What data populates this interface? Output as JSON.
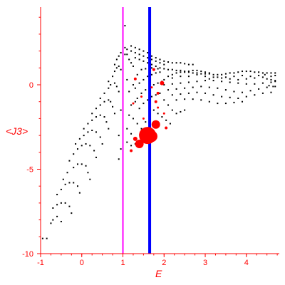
{
  "chart_data": {
    "type": "scatter",
    "title": "",
    "xlabel": "E",
    "ylabel": "<J3>",
    "xlim": [
      -1,
      4.8
    ],
    "ylim": [
      -10,
      4.6
    ],
    "x_ticks": [
      "-1",
      "0",
      "1",
      "2",
      "3",
      "4"
    ],
    "y_ticks": [
      "-10",
      "-5",
      "0"
    ],
    "x_tick_values": [
      -1,
      0,
      1,
      2,
      3,
      4
    ],
    "y_tick_values": [
      -10,
      -5,
      0
    ],
    "grid": false,
    "colors": {
      "axis": "#ff0000",
      "points": "#000000",
      "highlight": "#ff0000",
      "line_magenta": "#ff00ff",
      "line_blue": "#0000ff"
    },
    "vertical_lines": [
      {
        "x": 1.0,
        "color": "#ff00ff"
      },
      {
        "x": 1.65,
        "color": "#0000ff"
      }
    ],
    "black_points": [
      [
        -0.95,
        -9.1
      ],
      [
        -0.85,
        -9.1
      ],
      [
        -0.75,
        -8.2
      ],
      [
        -0.7,
        -8.0
      ],
      [
        -0.6,
        -7.8
      ],
      [
        -0.5,
        -8.1
      ],
      [
        -0.7,
        -7.3
      ],
      [
        -0.6,
        -7.1
      ],
      [
        -0.5,
        -7.0
      ],
      [
        -0.4,
        -7.0
      ],
      [
        -0.3,
        -7.2
      ],
      [
        -0.25,
        -7.6
      ],
      [
        -0.6,
        -6.5
      ],
      [
        -0.5,
        -6.2
      ],
      [
        -0.4,
        -5.9
      ],
      [
        -0.3,
        -5.8
      ],
      [
        -0.2,
        -5.8
      ],
      [
        -0.1,
        -6.0
      ],
      [
        -0.05,
        -6.4
      ],
      [
        -0.45,
        -5.6
      ],
      [
        -0.35,
        -5.2
      ],
      [
        -0.2,
        -4.9
      ],
      [
        -0.1,
        -4.7
      ],
      [
        0.0,
        -4.7
      ],
      [
        0.1,
        -4.8
      ],
      [
        0.15,
        -5.2
      ],
      [
        0.2,
        -5.6
      ],
      [
        -0.3,
        -4.5
      ],
      [
        -0.2,
        -4.1
      ],
      [
        -0.1,
        -3.8
      ],
      [
        0.0,
        -3.6
      ],
      [
        0.1,
        -3.5
      ],
      [
        0.2,
        -3.6
      ],
      [
        0.3,
        -3.9
      ],
      [
        0.35,
        -4.3
      ],
      [
        -0.15,
        -3.5
      ],
      [
        -0.05,
        -3.2
      ],
      [
        0.05,
        -3.0
      ],
      [
        0.15,
        -2.8
      ],
      [
        0.25,
        -2.7
      ],
      [
        0.35,
        -2.8
      ],
      [
        0.45,
        -3.1
      ],
      [
        0.5,
        -3.5
      ],
      [
        0.05,
        -2.6
      ],
      [
        0.15,
        -2.3
      ],
      [
        0.25,
        -2.1
      ],
      [
        0.35,
        -1.9
      ],
      [
        0.45,
        -1.8
      ],
      [
        0.55,
        -1.9
      ],
      [
        0.6,
        -2.2
      ],
      [
        0.65,
        -2.6
      ],
      [
        0.25,
        -1.7
      ],
      [
        0.35,
        -1.4
      ],
      [
        0.45,
        -1.2
      ],
      [
        0.55,
        -1.0
      ],
      [
        0.65,
        -0.9
      ],
      [
        0.7,
        -1.0
      ],
      [
        0.75,
        -1.3
      ],
      [
        0.8,
        -1.7
      ],
      [
        0.45,
        -0.8
      ],
      [
        0.55,
        -0.5
      ],
      [
        0.65,
        -0.2
      ],
      [
        0.7,
        0.0
      ],
      [
        0.8,
        0.1
      ],
      [
        0.85,
        -0.1
      ],
      [
        0.9,
        -0.4
      ],
      [
        0.65,
        0.2
      ],
      [
        0.75,
        0.5
      ],
      [
        0.8,
        0.8
      ],
      [
        0.85,
        1.0
      ],
      [
        0.9,
        1.1
      ],
      [
        0.95,
        0.9
      ],
      [
        0.8,
        1.2
      ],
      [
        0.85,
        1.5
      ],
      [
        0.9,
        1.7
      ],
      [
        0.95,
        1.9
      ],
      [
        1.0,
        2.0
      ],
      [
        1.05,
        1.8
      ],
      [
        0.9,
        -3.0
      ],
      [
        0.95,
        -3.8
      ],
      [
        0.9,
        -4.4
      ],
      [
        1.0,
        -2.5
      ],
      [
        0.95,
        -1.5
      ],
      [
        1.0,
        2.6
      ],
      [
        1.05,
        3.5
      ],
      [
        1.05,
        2.2
      ],
      [
        1.1,
        1.8
      ],
      [
        1.15,
        1.5
      ],
      [
        1.2,
        1.3
      ],
      [
        1.25,
        1.1
      ],
      [
        1.1,
        2.1
      ],
      [
        1.2,
        2.0
      ],
      [
        1.3,
        1.9
      ],
      [
        1.4,
        1.8
      ],
      [
        1.5,
        1.7
      ],
      [
        1.6,
        1.6
      ],
      [
        1.7,
        1.5
      ],
      [
        1.8,
        1.4
      ],
      [
        1.9,
        1.3
      ],
      [
        2.0,
        1.2
      ],
      [
        1.2,
        2.3
      ],
      [
        1.3,
        2.2
      ],
      [
        1.4,
        2.1
      ],
      [
        1.5,
        2.0
      ],
      [
        1.6,
        1.9
      ],
      [
        1.7,
        1.7
      ],
      [
        1.8,
        1.6
      ],
      [
        1.9,
        1.5
      ],
      [
        2.0,
        1.4
      ],
      [
        2.1,
        1.35
      ],
      [
        2.2,
        1.3
      ],
      [
        2.3,
        1.3
      ],
      [
        2.4,
        1.3
      ],
      [
        2.5,
        1.25
      ],
      [
        2.6,
        1.2
      ],
      [
        2.7,
        1.2
      ],
      [
        1.3,
        1.6
      ],
      [
        1.4,
        1.5
      ],
      [
        1.5,
        1.4
      ],
      [
        1.6,
        1.3
      ],
      [
        1.7,
        1.2
      ],
      [
        1.8,
        1.1
      ],
      [
        1.9,
        1.0
      ],
      [
        2.0,
        0.95
      ],
      [
        2.1,
        0.9
      ],
      [
        2.2,
        0.9
      ],
      [
        2.3,
        0.85
      ],
      [
        2.4,
        0.85
      ],
      [
        2.5,
        0.8
      ],
      [
        2.6,
        0.75
      ],
      [
        2.7,
        0.7
      ],
      [
        2.8,
        0.7
      ],
      [
        2.9,
        0.65
      ],
      [
        3.0,
        0.65
      ],
      [
        3.1,
        0.65
      ],
      [
        3.2,
        0.6
      ],
      [
        3.3,
        0.6
      ],
      [
        3.4,
        0.6
      ],
      [
        3.5,
        0.65
      ],
      [
        3.6,
        0.7
      ],
      [
        3.7,
        0.7
      ],
      [
        3.8,
        0.75
      ],
      [
        3.9,
        0.8
      ],
      [
        4.0,
        0.8
      ],
      [
        4.1,
        0.8
      ],
      [
        4.2,
        0.75
      ],
      [
        4.3,
        0.75
      ],
      [
        4.4,
        0.7
      ],
      [
        4.5,
        0.7
      ],
      [
        4.6,
        0.7
      ],
      [
        4.7,
        0.7
      ],
      [
        2.1,
        0.5
      ],
      [
        2.2,
        0.6
      ],
      [
        2.3,
        0.7
      ],
      [
        2.4,
        0.75
      ],
      [
        2.5,
        0.75
      ],
      [
        2.6,
        0.8
      ],
      [
        2.7,
        0.85
      ],
      [
        2.8,
        0.85
      ],
      [
        2.9,
        0.8
      ],
      [
        3.0,
        0.75
      ],
      [
        3.1,
        0.7
      ],
      [
        2.0,
        0.3
      ],
      [
        2.2,
        0.4
      ],
      [
        2.4,
        0.5
      ],
      [
        2.6,
        0.5
      ],
      [
        2.8,
        0.6
      ],
      [
        3.0,
        0.5
      ],
      [
        3.2,
        0.45
      ],
      [
        3.4,
        0.4
      ],
      [
        3.6,
        0.35
      ],
      [
        3.8,
        0.3
      ],
      [
        4.0,
        0.35
      ],
      [
        4.2,
        0.4
      ],
      [
        4.4,
        0.45
      ],
      [
        4.6,
        0.5
      ],
      [
        4.7,
        0.55
      ],
      [
        2.0,
        0.0
      ],
      [
        2.2,
        0.05
      ],
      [
        2.4,
        0.1
      ],
      [
        2.6,
        0.15
      ],
      [
        2.8,
        0.2
      ],
      [
        3.0,
        0.25
      ],
      [
        3.2,
        0.25
      ],
      [
        3.4,
        0.2
      ],
      [
        3.6,
        0.15
      ],
      [
        3.8,
        0.1
      ],
      [
        4.0,
        0.05
      ],
      [
        4.2,
        0.05
      ],
      [
        4.4,
        0.1
      ],
      [
        4.6,
        0.15
      ],
      [
        4.7,
        0.2
      ],
      [
        2.1,
        -0.3
      ],
      [
        2.3,
        -0.25
      ],
      [
        2.5,
        -0.2
      ],
      [
        2.7,
        -0.15
      ],
      [
        2.9,
        -0.1
      ],
      [
        3.1,
        -0.15
      ],
      [
        3.3,
        -0.2
      ],
      [
        3.5,
        -0.3
      ],
      [
        3.7,
        -0.4
      ],
      [
        3.9,
        -0.45
      ],
      [
        4.1,
        -0.35
      ],
      [
        4.3,
        -0.25
      ],
      [
        4.5,
        -0.15
      ],
      [
        4.7,
        -0.1
      ],
      [
        2.2,
        -0.6
      ],
      [
        2.4,
        -0.55
      ],
      [
        2.6,
        -0.5
      ],
      [
        2.8,
        -0.45
      ],
      [
        3.0,
        -0.5
      ],
      [
        3.2,
        -0.6
      ],
      [
        3.4,
        -0.7
      ],
      [
        3.6,
        -0.75
      ],
      [
        3.8,
        -0.8
      ],
      [
        4.0,
        -0.7
      ],
      [
        4.2,
        -0.6
      ],
      [
        4.4,
        -0.5
      ],
      [
        4.6,
        -0.45
      ],
      [
        2.3,
        -0.9
      ],
      [
        2.5,
        -0.85
      ],
      [
        2.7,
        -0.85
      ],
      [
        2.9,
        -0.9
      ],
      [
        3.1,
        -1.0
      ],
      [
        3.3,
        -1.1
      ],
      [
        3.5,
        -1.1
      ],
      [
        3.7,
        -1.05
      ],
      [
        3.9,
        -1.0
      ],
      [
        1.3,
        -0.2
      ],
      [
        1.4,
        0.1
      ],
      [
        1.5,
        0.3
      ],
      [
        1.6,
        0.5
      ],
      [
        1.7,
        0.6
      ],
      [
        1.8,
        0.7
      ],
      [
        1.9,
        0.75
      ],
      [
        1.35,
        -0.8
      ],
      [
        1.45,
        -0.5
      ],
      [
        1.55,
        -0.3
      ],
      [
        1.65,
        -0.1
      ],
      [
        1.75,
        0.0
      ],
      [
        1.85,
        0.1
      ],
      [
        1.95,
        0.2
      ],
      [
        1.2,
        -1.2
      ],
      [
        1.3,
        -1.0
      ],
      [
        1.4,
        -1.4
      ],
      [
        1.5,
        -1.1
      ],
      [
        1.6,
        -0.9
      ],
      [
        1.7,
        -0.7
      ],
      [
        1.8,
        -0.6
      ],
      [
        1.9,
        -0.5
      ],
      [
        2.0,
        -0.9
      ],
      [
        2.1,
        -1.2
      ],
      [
        2.2,
        -1.5
      ],
      [
        2.3,
        -1.7
      ],
      [
        2.4,
        -1.6
      ],
      [
        2.5,
        -1.5
      ],
      [
        1.15,
        -1.8
      ],
      [
        1.25,
        -2.0
      ],
      [
        1.35,
        -2.3
      ],
      [
        1.45,
        -2.6
      ],
      [
        1.55,
        -2.2
      ],
      [
        1.65,
        -1.8
      ],
      [
        1.75,
        -1.5
      ],
      [
        1.85,
        -1.7
      ],
      [
        1.95,
        -1.9
      ],
      [
        2.05,
        -2.1
      ],
      [
        2.15,
        -2.3
      ],
      [
        1.1,
        -2.6
      ],
      [
        1.2,
        -2.9
      ],
      [
        1.3,
        -3.2
      ],
      [
        1.1,
        -3.4
      ],
      [
        1.2,
        -3.6
      ],
      [
        1.3,
        -3.5
      ],
      [
        1.1,
        0.3
      ],
      [
        1.15,
        -0.4
      ],
      [
        1.25,
        0.0
      ],
      [
        1.35,
        0.6
      ],
      [
        1.45,
        0.9
      ],
      [
        1.55,
        0.95
      ],
      [
        1.7,
        1.0
      ],
      [
        1.85,
        0.95
      ],
      [
        4.5,
        0.35
      ],
      [
        4.6,
        0.3
      ],
      [
        4.7,
        0.25
      ],
      [
        4.55,
        -0.05
      ],
      [
        4.65,
        -0.1
      ],
      [
        4.45,
        0.6
      ],
      [
        4.3,
        0.55
      ],
      [
        4.1,
        0.5
      ],
      [
        3.9,
        0.55
      ],
      [
        3.7,
        0.5
      ],
      [
        3.5,
        0.45
      ],
      [
        3.3,
        0.45
      ],
      [
        3.1,
        0.35
      ]
    ],
    "red_points": [
      {
        "x": 1.6,
        "y": -3.0,
        "size": 12
      },
      {
        "x": 1.55,
        "y": -2.95,
        "size": 9
      },
      {
        "x": 1.7,
        "y": -3.05,
        "size": 8
      },
      {
        "x": 1.4,
        "y": -3.5,
        "size": 6
      },
      {
        "x": 1.8,
        "y": -2.35,
        "size": 6
      },
      {
        "x": 1.95,
        "y": 0.1,
        "size": 3
      },
      {
        "x": 1.3,
        "y": -3.2,
        "size": 3
      },
      {
        "x": 1.2,
        "y": -3.9,
        "size": 2
      },
      {
        "x": 2.05,
        "y": -2.55,
        "size": 2
      },
      {
        "x": 1.8,
        "y": -1.0,
        "size": 2
      },
      {
        "x": 1.85,
        "y": -0.5,
        "size": 2
      },
      {
        "x": 1.75,
        "y": 0.9,
        "size": 2
      },
      {
        "x": 1.3,
        "y": 0.35,
        "size": 2
      },
      {
        "x": 1.25,
        "y": -1.1,
        "size": 1.5
      },
      {
        "x": 2.0,
        "y": -1.7,
        "size": 1.5
      },
      {
        "x": 1.5,
        "y": -2.0,
        "size": 1.5
      },
      {
        "x": 1.45,
        "y": -0.7,
        "size": 1.5
      },
      {
        "x": 1.85,
        "y": -1.35,
        "size": 1.5
      },
      {
        "x": 1.55,
        "y": -3.35,
        "size": 2
      },
      {
        "x": 1.7,
        "y": -0.15,
        "size": 1.5
      }
    ]
  }
}
